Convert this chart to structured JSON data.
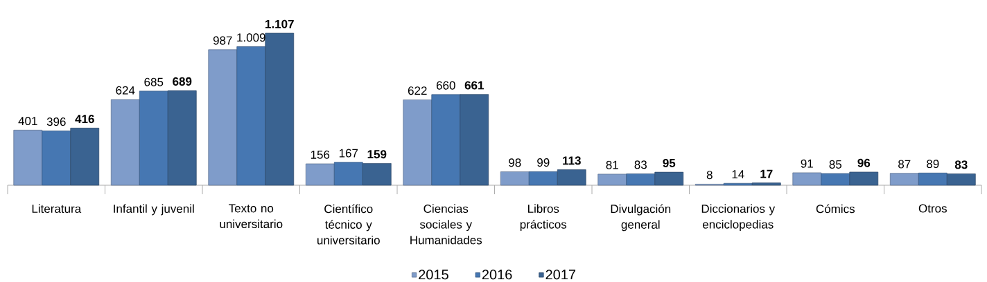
{
  "chart_data": {
    "type": "bar",
    "categories": [
      "Literatura",
      "Infantil y juvenil",
      "Texto no universitario",
      "Científico técnico y universitario",
      "Ciencias sociales y Humanidades",
      "Libros prácticos",
      "Divulgación general",
      "Diccionarios y enciclopedias",
      "Cómics",
      "Otros"
    ],
    "series": [
      {
        "name": "2015",
        "color": "#7f9cca",
        "values": [
          401,
          624,
          987,
          156,
          622,
          98,
          81,
          8,
          91,
          87
        ],
        "value_labels": [
          "401",
          "624",
          "987",
          "156",
          "622",
          "98",
          "81",
          "8",
          "91",
          "87"
        ]
      },
      {
        "name": "2016",
        "color": "#4677b2",
        "values": [
          396,
          685,
          1009,
          167,
          660,
          99,
          83,
          14,
          85,
          89
        ],
        "value_labels": [
          "396",
          "685",
          "1.009",
          "167",
          "660",
          "99",
          "83",
          "14",
          "85",
          "89"
        ]
      },
      {
        "name": "2017",
        "color": "#3a6391",
        "values": [
          416,
          689,
          1107,
          159,
          661,
          113,
          95,
          17,
          96,
          83
        ],
        "value_labels": [
          "416",
          "689",
          "1.107",
          "159",
          "661",
          "113",
          "95",
          "17",
          "96",
          "83"
        ]
      }
    ],
    "legend": "bottom"
  }
}
